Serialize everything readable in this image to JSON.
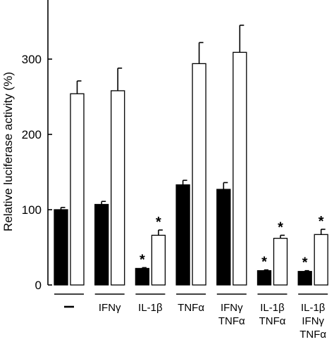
{
  "chart_data": {
    "type": "bar",
    "ylabel": "Relative luciferase activity (%)",
    "ylim": [
      0,
      350
    ],
    "yticks": [
      0,
      100,
      200,
      300
    ],
    "grid": false,
    "categories": [
      [
        "-"
      ],
      [
        "IFNγ"
      ],
      [
        "IL-1β"
      ],
      [
        "TNFα"
      ],
      [
        "IFNγ",
        "TNFα"
      ],
      [
        "IL-1β",
        "TNFα"
      ],
      [
        "IL-1β",
        "IFNγ",
        "TNFα"
      ]
    ],
    "series": [
      {
        "fill": "#000000",
        "values": [
          100,
          107,
          22,
          133,
          127,
          19,
          18
        ],
        "errors": [
          3,
          4,
          1,
          6,
          9,
          1,
          1
        ],
        "stars": [
          false,
          false,
          true,
          false,
          false,
          true,
          true
        ]
      },
      {
        "fill": "#ffffff",
        "values": [
          254,
          258,
          66,
          294,
          309,
          62,
          67
        ],
        "errors": [
          17,
          30,
          7,
          28,
          36,
          4,
          7
        ],
        "stars": [
          false,
          false,
          true,
          false,
          false,
          true,
          true
        ]
      }
    ],
    "star_symbol": "*"
  }
}
